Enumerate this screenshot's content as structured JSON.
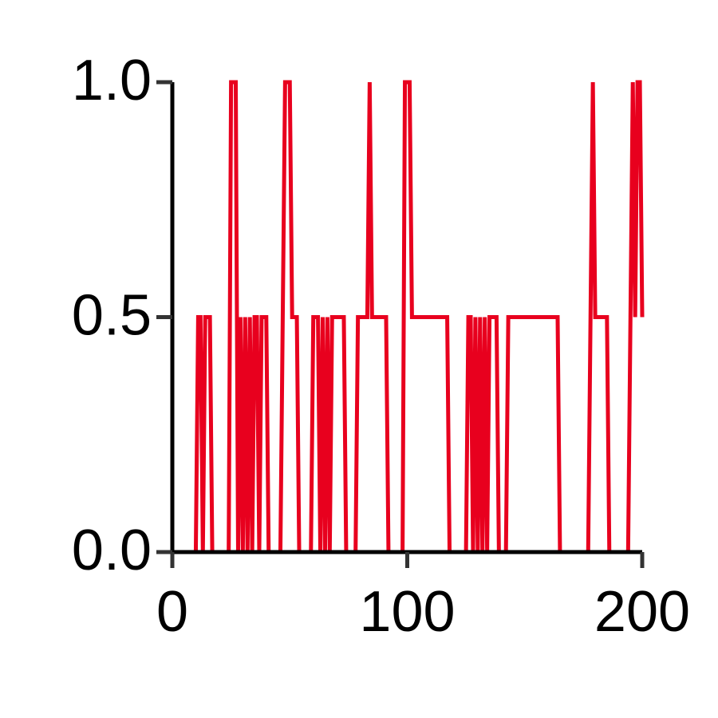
{
  "chart_data": {
    "type": "line",
    "x": [
      0,
      10,
      11,
      12,
      13,
      14,
      16,
      17,
      24,
      25,
      27,
      28,
      29,
      30,
      31,
      32,
      33,
      34,
      35,
      36,
      37,
      38,
      40,
      41,
      46,
      47,
      48,
      50,
      51,
      53,
      54,
      59,
      60,
      62,
      63,
      64,
      65,
      66,
      67,
      68,
      73,
      74,
      78,
      79,
      83,
      84,
      85,
      91,
      92,
      98,
      99,
      101,
      102,
      117,
      118,
      125,
      126,
      127,
      128,
      129,
      130,
      131,
      132,
      133,
      134,
      135,
      138,
      139,
      142,
      143,
      164,
      165,
      177,
      178,
      179,
      180,
      185,
      186,
      194,
      195,
      196,
      197,
      198,
      199,
      200
    ],
    "values": [
      0,
      0,
      0.5,
      0.5,
      0,
      0.5,
      0.5,
      0,
      0,
      1,
      1,
      0,
      0.5,
      0,
      0.5,
      0,
      0.5,
      0,
      0.5,
      0.5,
      0,
      0.5,
      0.5,
      0,
      0,
      0.5,
      1,
      1,
      0.5,
      0.5,
      0,
      0,
      0.5,
      0.5,
      0,
      0.5,
      0,
      0.5,
      0,
      0.5,
      0.5,
      0,
      0,
      0.5,
      0.5,
      1,
      0.5,
      0.5,
      0,
      0,
      1,
      1,
      0.5,
      0.5,
      0,
      0,
      0.5,
      0.5,
      0,
      0.5,
      0,
      0.5,
      0,
      0.5,
      0,
      0.5,
      0.5,
      0,
      0,
      0.5,
      0.5,
      0,
      0,
      0.5,
      1,
      0.5,
      0.5,
      0,
      0,
      0.5,
      1,
      0.5,
      1,
      1,
      0.5
    ],
    "color": "#e8001e",
    "xlim": [
      0,
      200
    ],
    "xticks": [
      0,
      100,
      200
    ],
    "ylim": [
      0,
      1
    ],
    "yticks": [
      {
        "value": 0,
        "label": "0.0"
      },
      {
        "value": 0.5,
        "label": "0.5"
      },
      {
        "value": 1,
        "label": "1.0"
      }
    ],
    "grid": false
  }
}
